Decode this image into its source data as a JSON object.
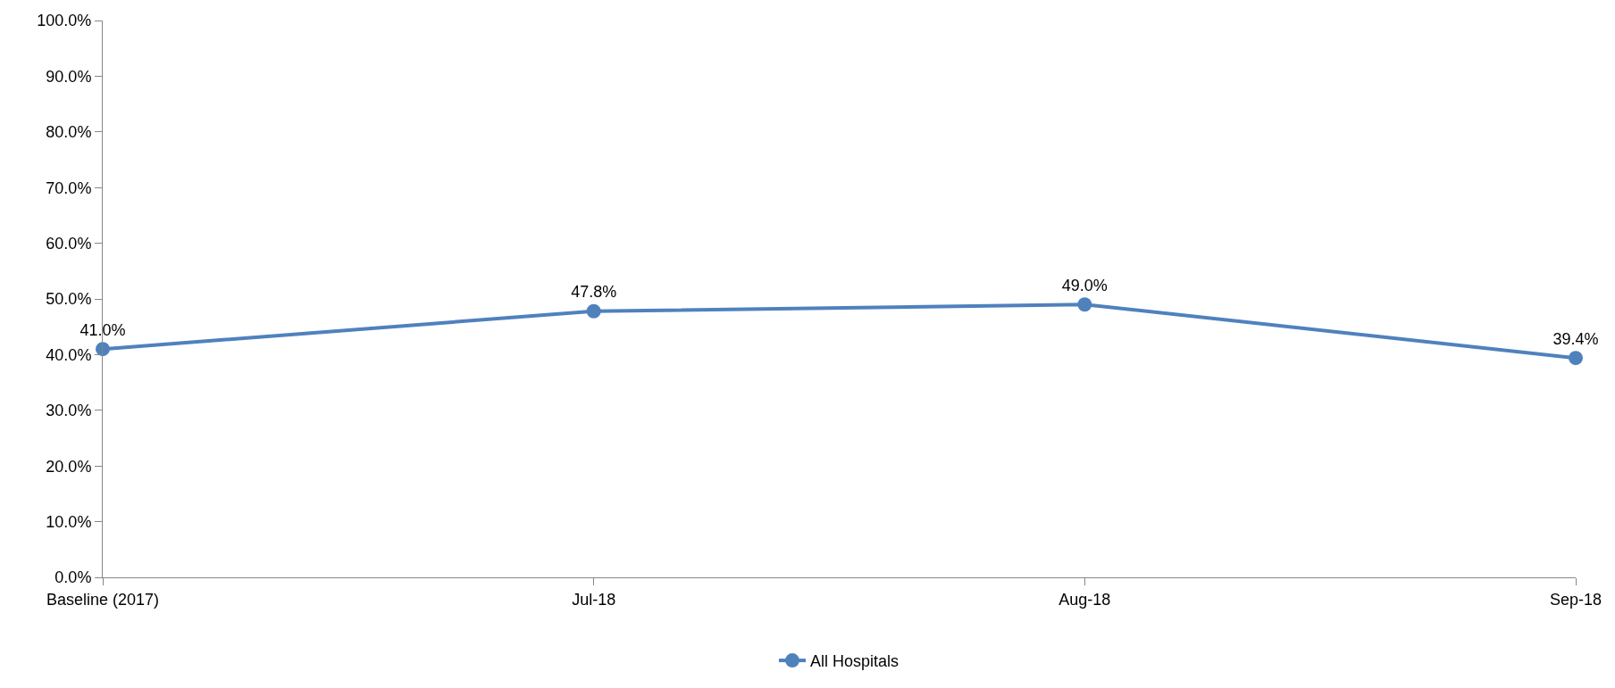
{
  "chart_data": {
    "type": "line",
    "categories": [
      "Baseline (2017)",
      "Jul-18",
      "Aug-18",
      "Sep-18"
    ],
    "series": [
      {
        "name": "All Hospitals",
        "color": "#4f81bd",
        "values": [
          41.0,
          47.8,
          49.0,
          39.4
        ],
        "value_labels": [
          "41.0%",
          "47.8%",
          "49.0%",
          "39.4%"
        ]
      }
    ],
    "ylim": [
      0,
      100
    ],
    "yticks": [
      {
        "value": 0,
        "label": "0.0%"
      },
      {
        "value": 10,
        "label": "10.0%"
      },
      {
        "value": 20,
        "label": "20.0%"
      },
      {
        "value": 30,
        "label": "30.0%"
      },
      {
        "value": 40,
        "label": "40.0%"
      },
      {
        "value": 50,
        "label": "50.0%"
      },
      {
        "value": 60,
        "label": "60.0%"
      },
      {
        "value": 70,
        "label": "70.0%"
      },
      {
        "value": 80,
        "label": "80.0%"
      },
      {
        "value": 90,
        "label": "90.0%"
      },
      {
        "value": 100,
        "label": "100.0%"
      }
    ],
    "grid": false,
    "legend": "bottom",
    "marker": "circle",
    "line_style": "solid"
  }
}
